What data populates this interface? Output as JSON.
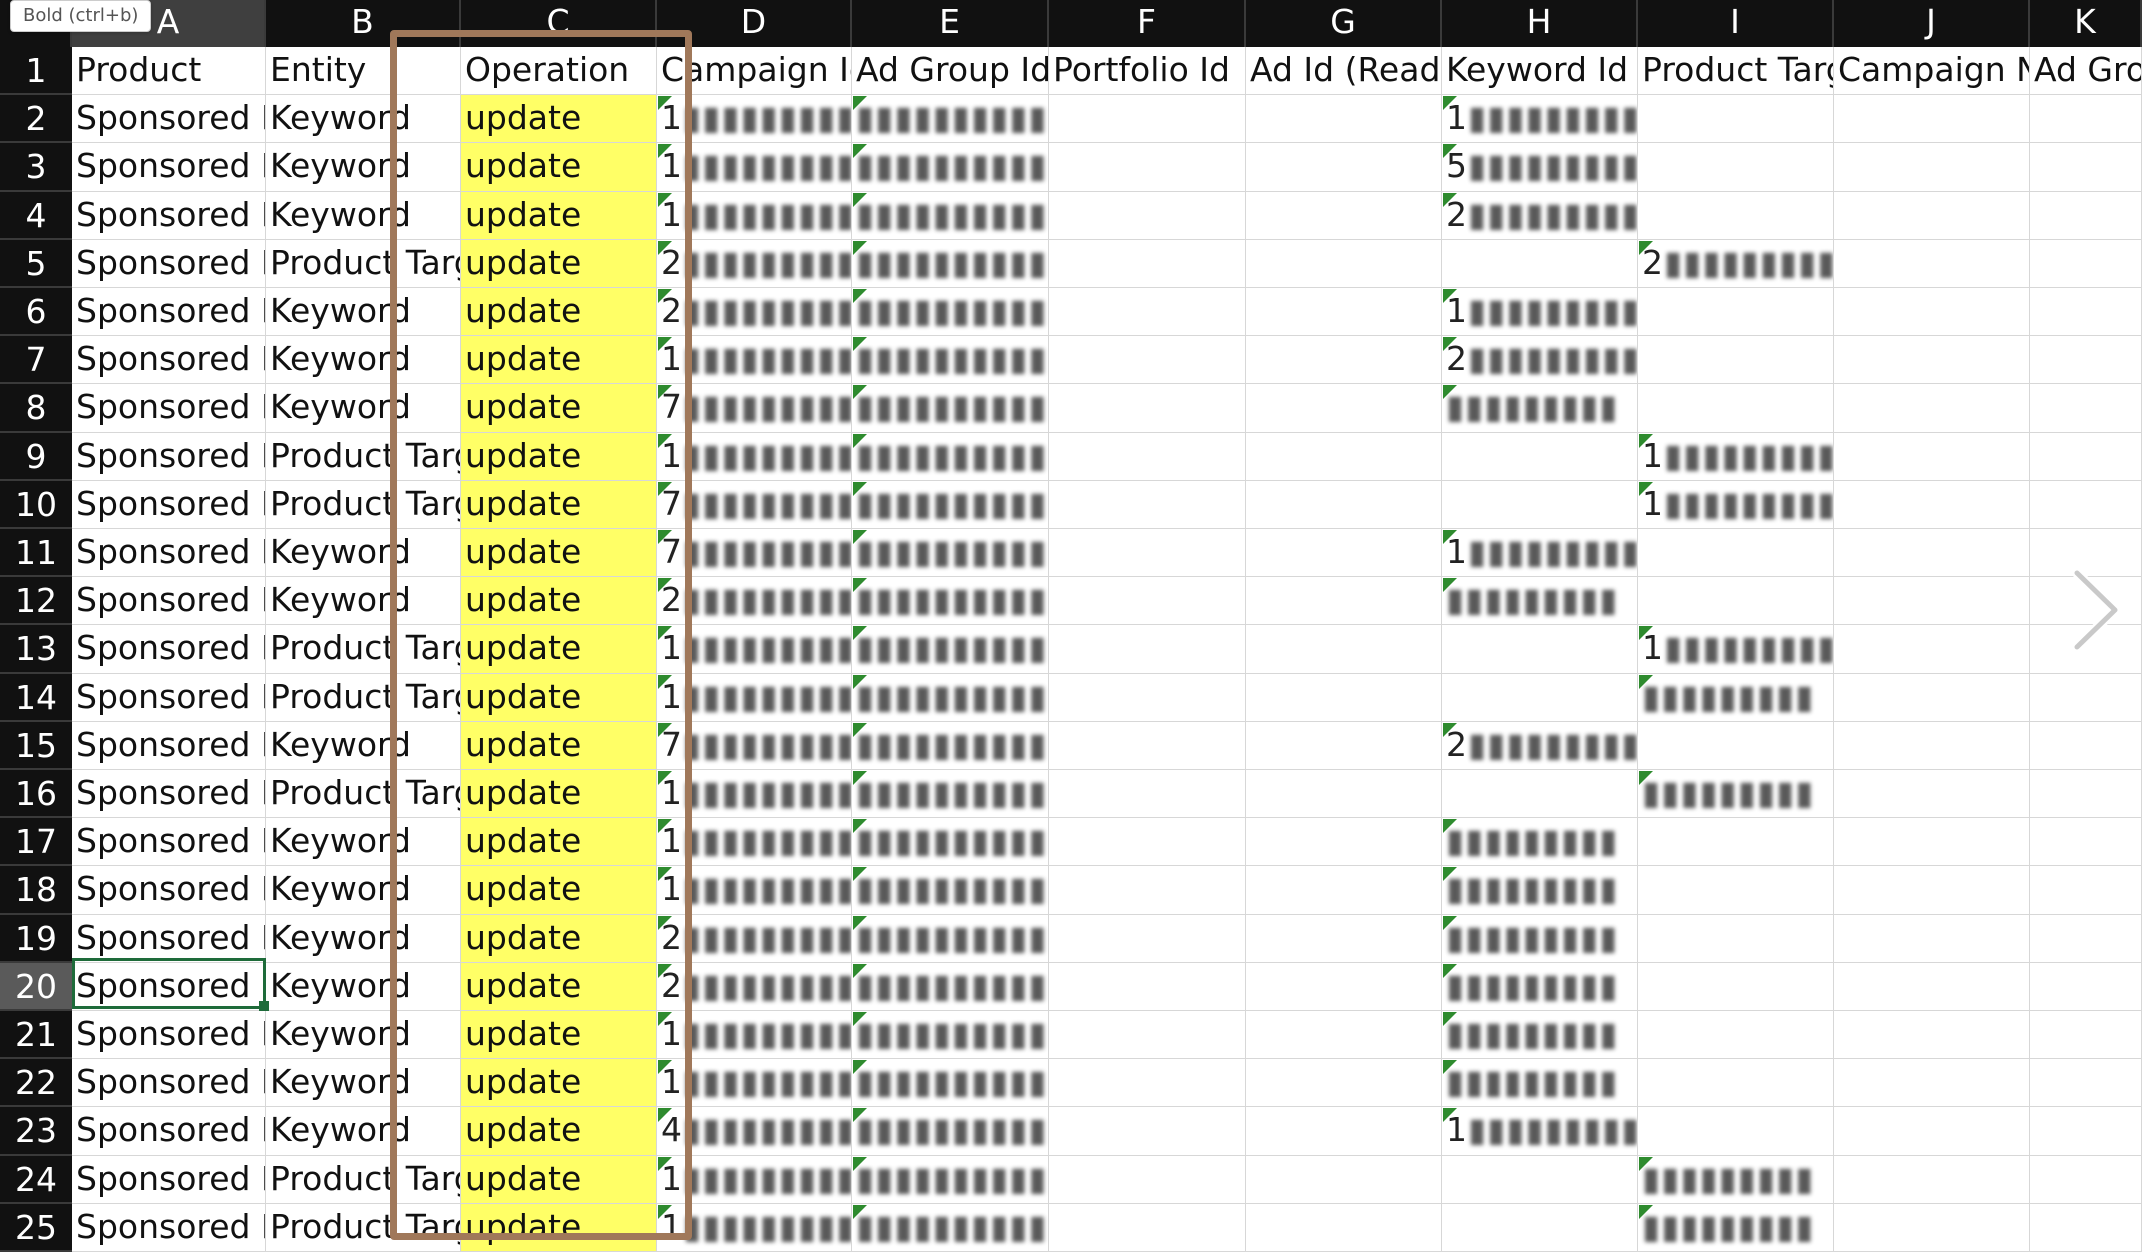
{
  "tooltip": "Bold (ctrl+b)",
  "columns": [
    "A",
    "B",
    "C",
    "D",
    "E",
    "F",
    "G",
    "H",
    "I",
    "J",
    "K"
  ],
  "row_numbers": [
    "1",
    "2",
    "3",
    "4",
    "5",
    "6",
    "7",
    "8",
    "9",
    "10",
    "11",
    "12",
    "13",
    "14",
    "15",
    "16",
    "17",
    "18",
    "19",
    "20",
    "21",
    "22",
    "23",
    "24",
    "25"
  ],
  "header_row": [
    "Product",
    "Entity",
    "Operation",
    "Campaign Id",
    "Ad Group Id",
    "Portfolio Id",
    "Ad Id (Read",
    "Keyword Id (",
    "Product Targ",
    "Campaign Na",
    "Ad Gro"
  ],
  "rows": [
    {
      "product": "Sponsored Pr",
      "entity": "Keyword",
      "operation": "update",
      "campaign_id": "1",
      "ad_group_id": "",
      "keyword_id": "1",
      "product_targ": ""
    },
    {
      "product": "Sponsored Pr",
      "entity": "Keyword",
      "operation": "update",
      "campaign_id": "1",
      "ad_group_id": "",
      "keyword_id": "5",
      "product_targ": ""
    },
    {
      "product": "Sponsored Pr",
      "entity": "Keyword",
      "operation": "update",
      "campaign_id": "1",
      "ad_group_id": "",
      "keyword_id": "2",
      "product_targ": ""
    },
    {
      "product": "Sponsored Pr",
      "entity": "Product Targ",
      "operation": "update",
      "campaign_id": "2",
      "ad_group_id": "",
      "keyword_id": "",
      "product_targ": "2"
    },
    {
      "product": "Sponsored Pr",
      "entity": "Keyword",
      "operation": "update",
      "campaign_id": "2",
      "ad_group_id": "",
      "keyword_id": "1",
      "product_targ": ""
    },
    {
      "product": "Sponsored Pr",
      "entity": "Keyword",
      "operation": "update",
      "campaign_id": "1",
      "ad_group_id": "",
      "keyword_id": "2",
      "product_targ": ""
    },
    {
      "product": "Sponsored Pr",
      "entity": "Keyword",
      "operation": "update",
      "campaign_id": "7",
      "ad_group_id": "",
      "keyword_id": "",
      "product_targ": ""
    },
    {
      "product": "Sponsored Pr",
      "entity": "Product Targ",
      "operation": "update",
      "campaign_id": "1",
      "ad_group_id": "",
      "keyword_id": "",
      "product_targ": "1"
    },
    {
      "product": "Sponsored Pr",
      "entity": "Product Targ",
      "operation": "update",
      "campaign_id": "7",
      "ad_group_id": "",
      "keyword_id": "",
      "product_targ": "1"
    },
    {
      "product": "Sponsored Pr",
      "entity": "Keyword",
      "operation": "update",
      "campaign_id": "7",
      "ad_group_id": "",
      "keyword_id": "1",
      "product_targ": ""
    },
    {
      "product": "Sponsored Pr",
      "entity": "Keyword",
      "operation": "update",
      "campaign_id": "2",
      "ad_group_id": "",
      "keyword_id": "",
      "product_targ": ""
    },
    {
      "product": "Sponsored Pr",
      "entity": "Product Targ",
      "operation": "update",
      "campaign_id": "1",
      "ad_group_id": "",
      "keyword_id": "",
      "product_targ": "1"
    },
    {
      "product": "Sponsored Pr",
      "entity": "Product Targ",
      "operation": "update",
      "campaign_id": "1",
      "ad_group_id": "",
      "keyword_id": "",
      "product_targ": ""
    },
    {
      "product": "Sponsored Pr",
      "entity": "Keyword",
      "operation": "update",
      "campaign_id": "7",
      "ad_group_id": "",
      "keyword_id": "2",
      "product_targ": ""
    },
    {
      "product": "Sponsored Pr",
      "entity": "Product Targ",
      "operation": "update",
      "campaign_id": "1",
      "ad_group_id": "",
      "keyword_id": "",
      "product_targ": ""
    },
    {
      "product": "Sponsored Pr",
      "entity": "Keyword",
      "operation": "update",
      "campaign_id": "1",
      "ad_group_id": "",
      "keyword_id": "",
      "product_targ": ""
    },
    {
      "product": "Sponsored Pr",
      "entity": "Keyword",
      "operation": "update",
      "campaign_id": "1",
      "ad_group_id": "",
      "keyword_id": "",
      "product_targ": ""
    },
    {
      "product": "Sponsored Pr",
      "entity": "Keyword",
      "operation": "update",
      "campaign_id": "2",
      "ad_group_id": "",
      "keyword_id": "",
      "product_targ": ""
    },
    {
      "product": "Sponsored P",
      "entity": "Keyword",
      "operation": "update",
      "campaign_id": "2",
      "ad_group_id": "",
      "keyword_id": "",
      "product_targ": ""
    },
    {
      "product": "Sponsored Pr",
      "entity": "Keyword",
      "operation": "update",
      "campaign_id": "1",
      "ad_group_id": "",
      "keyword_id": "",
      "product_targ": ""
    },
    {
      "product": "Sponsored Pr",
      "entity": "Keyword",
      "operation": "update",
      "campaign_id": "1",
      "ad_group_id": "",
      "keyword_id": "",
      "product_targ": ""
    },
    {
      "product": "Sponsored Pr",
      "entity": "Keyword",
      "operation": "update",
      "campaign_id": "4",
      "ad_group_id": "",
      "keyword_id": "1",
      "product_targ": ""
    },
    {
      "product": "Sponsored Pr",
      "entity": "Product Targ",
      "operation": "update",
      "campaign_id": "1",
      "ad_group_id": "",
      "keyword_id": "",
      "product_targ": ""
    },
    {
      "product": "Sponsored Pr",
      "entity": "Product Targ",
      "operation": "update",
      "campaign_id": "1",
      "ad_group_id": "",
      "keyword_id": "",
      "product_targ": ""
    }
  ],
  "active_cell": "A20",
  "colors": {
    "header_bg": "#111111",
    "operation_fill": "#ffff66",
    "highlight_frame": "#a0785a",
    "active_cell_border": "#1e6b3a",
    "comment_flag": "#2e8b2e"
  }
}
